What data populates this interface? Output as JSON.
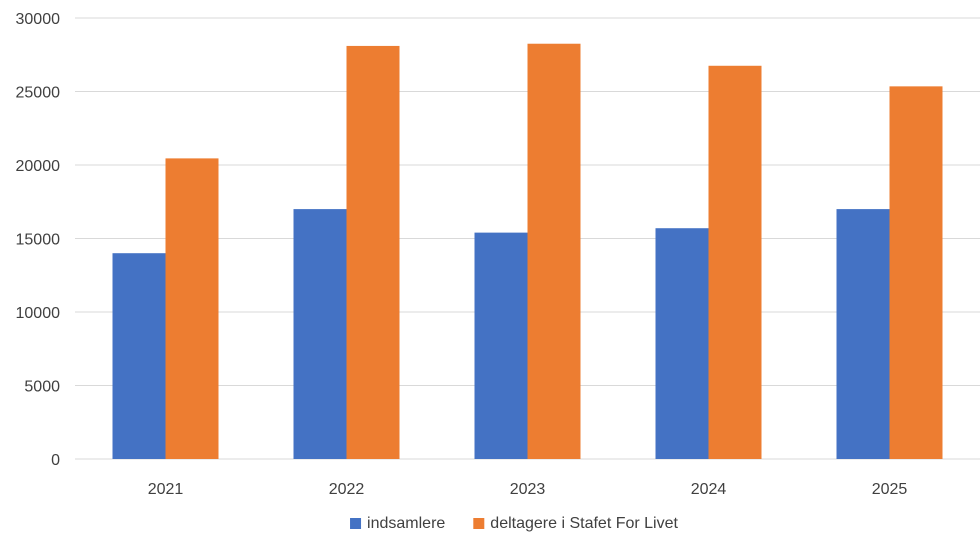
{
  "chart_data": {
    "type": "bar",
    "title": "",
    "xlabel": "",
    "ylabel": "",
    "categories": [
      "2021",
      "2022",
      "2023",
      "2024",
      "2025"
    ],
    "series": [
      {
        "name": "indsamlere",
        "values": [
          14000,
          17000,
          15400,
          15700,
          17000
        ],
        "color": "#4472C4"
      },
      {
        "name": "deltagere i Stafet For Livet",
        "values": [
          20450,
          28100,
          28250,
          26750,
          25350
        ],
        "color": "#ED7D31"
      }
    ],
    "ylim": [
      0,
      30000
    ],
    "yticks": [
      0,
      5000,
      10000,
      15000,
      20000,
      25000,
      30000
    ],
    "grid": "horizontal",
    "legend_position": "bottom",
    "gridline_color": "#D9D9D9"
  }
}
